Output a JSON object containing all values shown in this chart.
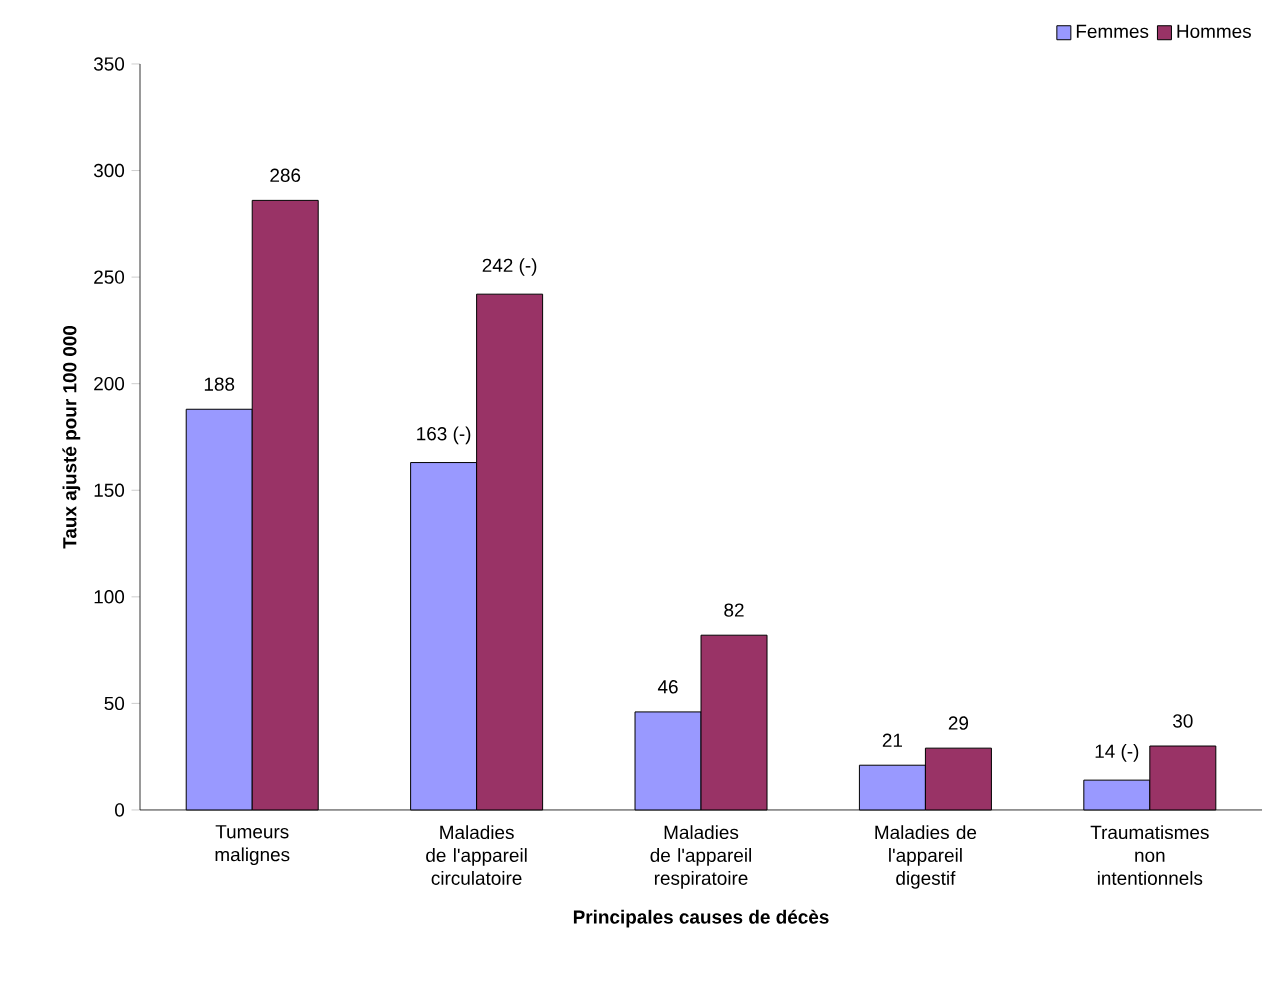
{
  "chart_data": {
    "type": "bar",
    "categories": [
      "Tumeurs malignes",
      "Maladies de l'appareil circulatoire",
      "Maladies de l'appareil respiratoire",
      "Maladies de l'appareil digestif",
      "Traumatismes non intentionnels"
    ],
    "series": [
      {
        "name": "Femmes",
        "color": "#9999ff",
        "values": [
          188,
          163,
          46,
          21,
          14
        ],
        "value_labels": [
          "188",
          "163 (-)",
          "46",
          "21",
          "14 (-)"
        ]
      },
      {
        "name": "Hommes",
        "color": "#993366",
        "values": [
          286,
          242,
          82,
          29,
          30
        ],
        "value_labels": [
          "286",
          "242 (-)",
          "82",
          "29",
          "30"
        ]
      }
    ],
    "xlabel": "Principales causes de décès",
    "ylabel": "Taux ajusté pour 100 000",
    "ylim": [
      0,
      350
    ],
    "yticks": [
      0,
      50,
      100,
      150,
      200,
      250,
      300,
      350
    ],
    "legend": "top right"
  }
}
